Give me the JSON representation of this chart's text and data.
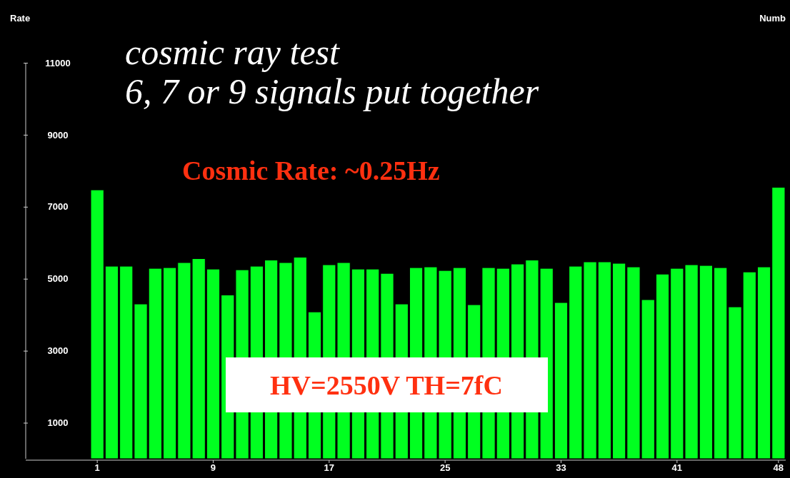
{
  "chart_data": {
    "type": "bar",
    "title": "cosmic ray test",
    "subtitle": "6, 7 or 9 signals put together",
    "ylabel": "Rate",
    "xlabel": "Numb",
    "categories": [
      "1",
      null,
      null,
      null,
      null,
      null,
      null,
      null,
      "9",
      null,
      null,
      null,
      null,
      null,
      null,
      null,
      "17",
      null,
      null,
      null,
      null,
      null,
      null,
      null,
      "25",
      null,
      null,
      null,
      null,
      null,
      null,
      null,
      "33",
      null,
      null,
      null,
      null,
      null,
      null,
      null,
      "41",
      null,
      null,
      null,
      null,
      null,
      null,
      "48"
    ],
    "values": [
      7470,
      5350,
      5350,
      4300,
      5290,
      5310,
      5450,
      5560,
      5270,
      4550,
      5250,
      5350,
      5520,
      5450,
      5600,
      4080,
      5390,
      5450,
      5270,
      5270,
      5150,
      4300,
      5310,
      5330,
      5230,
      5310,
      4280,
      5310,
      5290,
      5410,
      5520,
      5290,
      4340,
      5350,
      5470,
      5470,
      5430,
      5330,
      4420,
      5130,
      5290,
      5390,
      5370,
      5310,
      4220,
      5190,
      5330,
      7540
    ],
    "color": "#00ff20",
    "ylim": [
      0,
      11000
    ],
    "yticks": [
      1000,
      3000,
      5000,
      7000,
      9000,
      11000
    ],
    "grid": false,
    "annotations": [
      "Cosmic Rate: ~0.25Hz",
      "HV=2550V TH=7fC"
    ]
  }
}
